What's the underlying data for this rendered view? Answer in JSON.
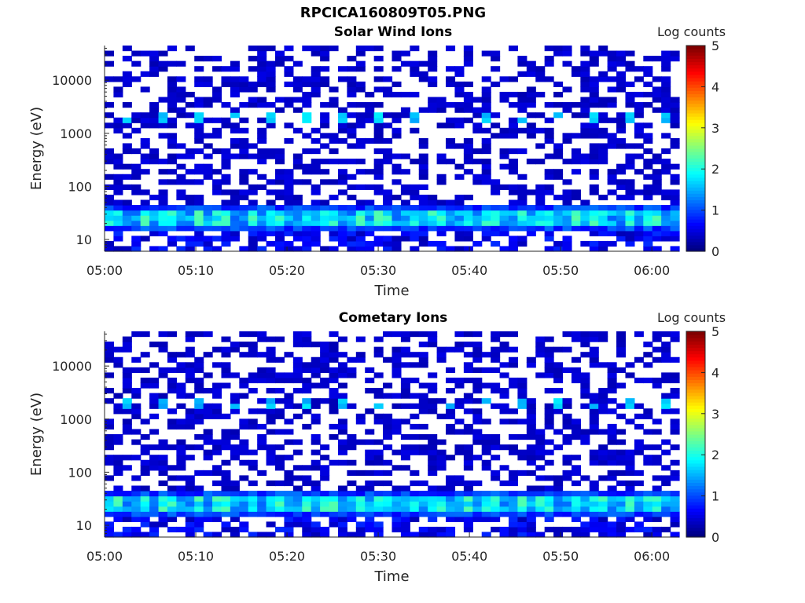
{
  "figure_title": "RPCICA160809T05.PNG",
  "chart_data": [
    {
      "type": "heatmap",
      "title": "Solar Wind Ions",
      "xlabel": "Time",
      "ylabel": "Energy (eV)",
      "x_ticks": [
        "05:00",
        "05:10",
        "05:20",
        "05:30",
        "05:40",
        "05:50",
        "06:00"
      ],
      "y_ticks": [
        "10",
        "100",
        "1000",
        "10000"
      ],
      "y_scale": "log",
      "y_range": [
        6,
        45000
      ],
      "x_range": [
        "05:00",
        "06:03"
      ],
      "colorbar": {
        "label": "Log counts",
        "range": [
          0,
          5
        ],
        "ticks": [
          "0",
          "1",
          "2",
          "3",
          "4",
          "5"
        ],
        "colormap": "jet"
      },
      "columns": 64,
      "rows": 40,
      "pattern_seed": 11
    },
    {
      "type": "heatmap",
      "title": "Cometary Ions",
      "xlabel": "Time",
      "ylabel": "Energy (eV)",
      "x_ticks": [
        "05:00",
        "05:10",
        "05:20",
        "05:30",
        "05:40",
        "05:50",
        "06:00"
      ],
      "y_ticks": [
        "10",
        "100",
        "1000",
        "10000"
      ],
      "y_scale": "log",
      "y_range": [
        6,
        45000
      ],
      "x_range": [
        "05:00",
        "06:03"
      ],
      "colorbar": {
        "label": "Log counts",
        "range": [
          0,
          5
        ],
        "ticks": [
          "0",
          "1",
          "2",
          "3",
          "4",
          "5"
        ],
        "colormap": "jet"
      },
      "columns": 64,
      "rows": 40,
      "pattern_seed": 27
    }
  ]
}
